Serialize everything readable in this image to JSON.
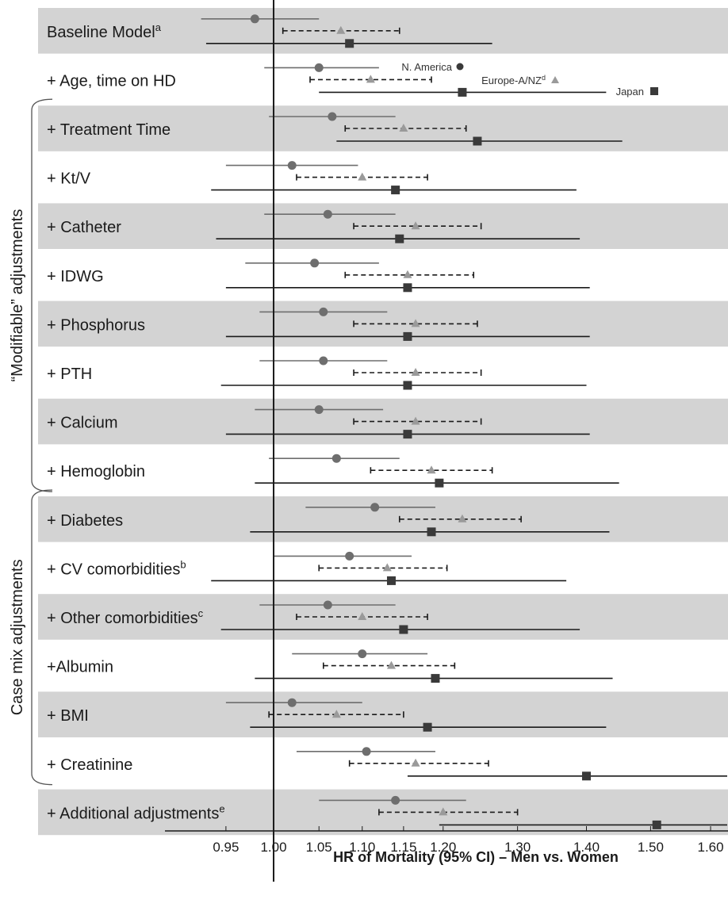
{
  "colors": {
    "band": "#d3d3d3",
    "na": "#6e6e6e",
    "eu": "#9a9a9a",
    "jp": "#3a3a3a",
    "line": "#1a1a1a"
  },
  "chart_data": {
    "type": "forest",
    "xlabel": "HR of Mortality (95%  CI) – Men vs. Women",
    "x_ticks": [
      "0.95",
      "1.00",
      "1.05",
      "1.10",
      "1.15",
      "1.20",
      "1.30",
      "1.40",
      "1.50",
      "1.60"
    ],
    "x_scale": "log",
    "xlim": [
      0.905,
      1.64
    ],
    "reference_line": 1.0,
    "legend": [
      {
        "label": "N. America",
        "sup": "",
        "marker": "circle"
      },
      {
        "label": "Europe-A/NZ",
        "sup": "d",
        "marker": "triangle"
      },
      {
        "label": "Japan",
        "sup": "",
        "marker": "square"
      }
    ],
    "groups": [
      {
        "label": "“Modifiable” adjustments",
        "from_row": 2,
        "to_row": 9
      },
      {
        "label": "Case mix adjustments",
        "from_row": 10,
        "to_row": 15
      }
    ],
    "rows": [
      {
        "label": "Baseline Model",
        "sup": "a",
        "shaded": true,
        "na": [
          0.98,
          0.925,
          1.05
        ],
        "eu": [
          1.075,
          1.01,
          1.145
        ],
        "jp": [
          1.085,
          0.93,
          1.265
        ]
      },
      {
        "label": "+ Age, time on HD",
        "sup": "",
        "shaded": false,
        "na": [
          1.05,
          0.99,
          1.12
        ],
        "eu": [
          1.11,
          1.04,
          1.185
        ],
        "jp": [
          1.225,
          1.05,
          1.43
        ]
      },
      {
        "label": "+ Treatment Time",
        "sup": "",
        "shaded": true,
        "na": [
          1.065,
          0.995,
          1.14
        ],
        "eu": [
          1.15,
          1.08,
          1.23
        ],
        "jp": [
          1.245,
          1.07,
          1.455
        ]
      },
      {
        "label": "+ Kt/V",
        "sup": "",
        "shaded": false,
        "na": [
          1.02,
          0.95,
          1.095
        ],
        "eu": [
          1.1,
          1.025,
          1.18
        ],
        "jp": [
          1.14,
          0.935,
          1.385
        ]
      },
      {
        "label": "+ Catheter",
        "sup": "",
        "shaded": true,
        "na": [
          1.06,
          0.99,
          1.14
        ],
        "eu": [
          1.165,
          1.09,
          1.25
        ],
        "jp": [
          1.145,
          0.94,
          1.39
        ]
      },
      {
        "label": "+ IDWG",
        "sup": "",
        "shaded": false,
        "na": [
          1.045,
          0.97,
          1.12
        ],
        "eu": [
          1.155,
          1.08,
          1.24
        ],
        "jp": [
          1.155,
          0.95,
          1.405
        ]
      },
      {
        "label": "+ Phosphorus",
        "sup": "",
        "shaded": true,
        "na": [
          1.055,
          0.985,
          1.13
        ],
        "eu": [
          1.165,
          1.09,
          1.245
        ],
        "jp": [
          1.155,
          0.95,
          1.405
        ]
      },
      {
        "label": "+ PTH",
        "sup": "",
        "shaded": false,
        "na": [
          1.055,
          0.985,
          1.13
        ],
        "eu": [
          1.165,
          1.09,
          1.25
        ],
        "jp": [
          1.155,
          0.945,
          1.4
        ]
      },
      {
        "label": "+ Calcium",
        "sup": "",
        "shaded": true,
        "na": [
          1.05,
          0.98,
          1.125
        ],
        "eu": [
          1.165,
          1.09,
          1.25
        ],
        "jp": [
          1.155,
          0.95,
          1.405
        ]
      },
      {
        "label": "+ Hemoglobin",
        "sup": "",
        "shaded": false,
        "na": [
          1.07,
          0.995,
          1.145
        ],
        "eu": [
          1.185,
          1.11,
          1.265
        ],
        "jp": [
          1.195,
          0.98,
          1.45
        ]
      },
      {
        "label": "+ Diabetes",
        "sup": "",
        "shaded": true,
        "na": [
          1.115,
          1.035,
          1.19
        ],
        "eu": [
          1.225,
          1.145,
          1.305
        ],
        "jp": [
          1.185,
          0.975,
          1.435
        ]
      },
      {
        "label": "+ CV comorbidities",
        "sup": "b",
        "shaded": false,
        "na": [
          1.085,
          1.0,
          1.16
        ],
        "eu": [
          1.13,
          1.05,
          1.205
        ],
        "jp": [
          1.135,
          0.935,
          1.37
        ]
      },
      {
        "label": "+ Other comorbidities",
        "sup": "c",
        "shaded": true,
        "na": [
          1.06,
          0.985,
          1.14
        ],
        "eu": [
          1.1,
          1.025,
          1.18
        ],
        "jp": [
          1.15,
          0.945,
          1.39
        ]
      },
      {
        "label": "+Albumin",
        "sup": "",
        "shaded": false,
        "na": [
          1.1,
          1.02,
          1.18
        ],
        "eu": [
          1.135,
          1.055,
          1.215
        ],
        "jp": [
          1.19,
          0.98,
          1.44
        ]
      },
      {
        "label": "+ BMI",
        "sup": "",
        "shaded": true,
        "na": [
          1.02,
          0.95,
          1.1
        ],
        "eu": [
          1.07,
          0.995,
          1.15
        ],
        "jp": [
          1.18,
          0.975,
          1.43
        ]
      },
      {
        "label": "+ Creatinine",
        "sup": "",
        "shaded": false,
        "na": [
          1.105,
          1.025,
          1.19
        ],
        "eu": [
          1.165,
          1.085,
          1.26
        ],
        "jp": [
          1.4,
          1.155,
          1.64
        ]
      },
      {
        "label": "+ Additional adjustments",
        "sup": "e",
        "shaded": true,
        "na": [
          1.14,
          1.05,
          1.23
        ],
        "eu": [
          1.2,
          1.12,
          1.3
        ],
        "jp": [
          1.51,
          1.195,
          1.64
        ]
      }
    ]
  }
}
